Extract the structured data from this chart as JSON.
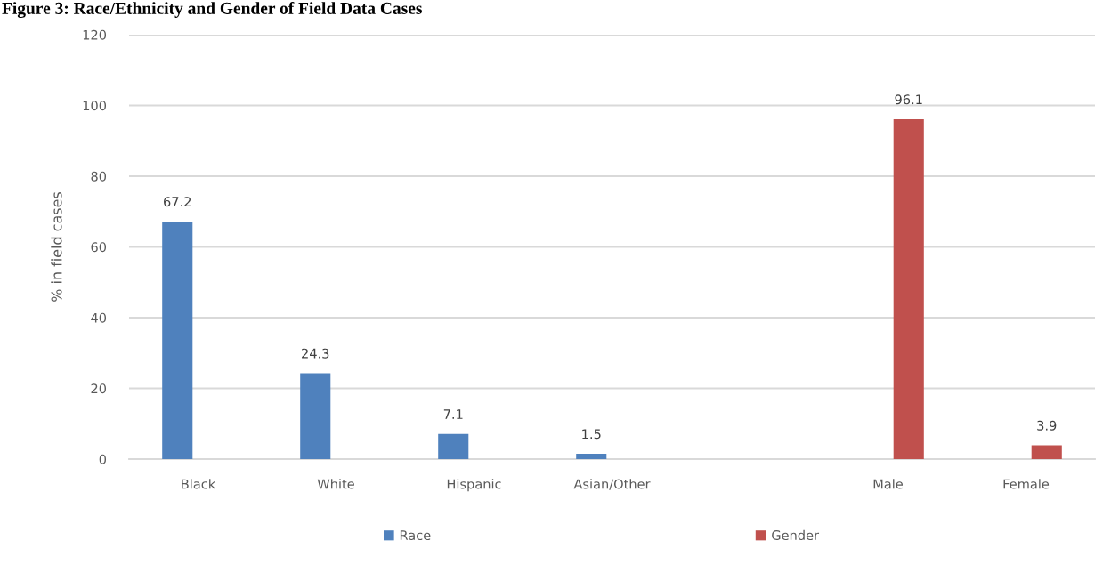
{
  "chart_data": {
    "type": "bar",
    "title": "Figure 3: Race/Ethnicity and Gender of Field Data Cases",
    "ylabel": "% in field cases",
    "categories": [
      "Black",
      "White",
      "Hispanic",
      "Asian/Other",
      null,
      "Male",
      "Female"
    ],
    "series": [
      {
        "name": "Race",
        "color": "#4f81bd",
        "values": [
          67.2,
          24.3,
          7.1,
          1.5,
          null,
          null,
          null
        ]
      },
      {
        "name": "Gender",
        "color": "#c0504d",
        "values": [
          null,
          null,
          null,
          null,
          null,
          96.1,
          3.9
        ]
      }
    ],
    "ylim": [
      0,
      120
    ],
    "yticks": [
      0,
      20,
      40,
      60,
      80,
      100,
      120
    ],
    "grid": "y",
    "legend": "bottom",
    "data_labels": true
  }
}
